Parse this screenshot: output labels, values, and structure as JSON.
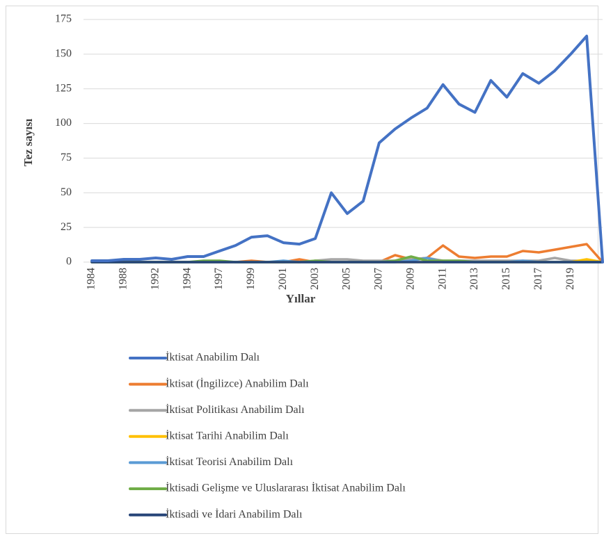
{
  "chart_data": {
    "type": "line",
    "x_label": "Yıllar",
    "y_label": "Tez sayısı",
    "categories": [
      "1984",
      null,
      "1988",
      null,
      "1992",
      null,
      "1994",
      null,
      "1997",
      null,
      "1999",
      null,
      "2001",
      null,
      "2003",
      null,
      "2005",
      null,
      "2007",
      null,
      "2009",
      null,
      "2011",
      null,
      "2013",
      null,
      "2015",
      null,
      "2017",
      null,
      "2019",
      null,
      null
    ],
    "series": [
      {
        "name": "İktisat Anabilim Dalı",
        "color": "#4472c4",
        "values": [
          1,
          1,
          2,
          2,
          3,
          2,
          4,
          4,
          8,
          12,
          18,
          19,
          14,
          13,
          17,
          50,
          35,
          44,
          86,
          96,
          104,
          111,
          128,
          114,
          108,
          131,
          119,
          136,
          129,
          138,
          150,
          163,
          0
        ]
      },
      {
        "name": "İktisat (İngilizce) Anabilim Dalı",
        "color": "#ed7d31",
        "values": [
          0,
          0,
          0,
          0,
          0,
          0,
          0,
          0,
          0,
          0,
          1,
          0,
          0,
          2,
          0,
          0,
          0,
          0,
          0,
          5,
          2,
          3,
          12,
          4,
          3,
          4,
          4,
          8,
          7,
          9,
          11,
          13,
          0
        ]
      },
      {
        "name": "İktisat Politikası Anabilim Dalı",
        "color": "#a5a5a5",
        "values": [
          0,
          0,
          0,
          0,
          0,
          0,
          0,
          0,
          0,
          0,
          0,
          0,
          0,
          0,
          1,
          2,
          2,
          1,
          1,
          1,
          2,
          3,
          1,
          1,
          1,
          1,
          1,
          1,
          1,
          3,
          1,
          1,
          0
        ]
      },
      {
        "name": "İktisat Tarihi Anabilim Dalı",
        "color": "#ffc000",
        "values": [
          0,
          0,
          0,
          0,
          0,
          0,
          0,
          0,
          0,
          0,
          0,
          0,
          0,
          0,
          0,
          0,
          0,
          0,
          0,
          0,
          0,
          0,
          0,
          0,
          0,
          0,
          0,
          0,
          0,
          0,
          0,
          2,
          0
        ]
      },
      {
        "name": "İktisat Teorisi Anabilim Dalı",
        "color": "#5b9bd5",
        "values": [
          0,
          0,
          0,
          0,
          0,
          0,
          0,
          0,
          0,
          0,
          0,
          0,
          1,
          0,
          0,
          0,
          0,
          0,
          0,
          0,
          1,
          3,
          0,
          0,
          0,
          0,
          0,
          1,
          0,
          0,
          0,
          0,
          0
        ]
      },
      {
        "name": "İktisadi Gelişme ve Uluslararası İktisat Anabilim Dalı",
        "color": "#70ad47",
        "values": [
          0,
          0,
          0,
          0,
          0,
          0,
          0,
          1,
          1,
          0,
          0,
          0,
          0,
          0,
          1,
          0,
          0,
          0,
          0,
          1,
          4,
          1,
          1,
          1,
          0,
          0,
          0,
          0,
          0,
          0,
          0,
          0,
          0
        ]
      },
      {
        "name": "İktisadi ve İdari Anabilim Dalı",
        "color": "#264478",
        "values": [
          0,
          0,
          0,
          0,
          0,
          0,
          0,
          0,
          0,
          0,
          0,
          0,
          0,
          0,
          0,
          0,
          0,
          0,
          0,
          0,
          0,
          0,
          0,
          0,
          0,
          0,
          0,
          0,
          0,
          0,
          0,
          0,
          0
        ]
      }
    ],
    "ylim": [
      0,
      175
    ],
    "yticks": [
      0,
      25,
      50,
      75,
      100,
      125,
      150,
      175
    ],
    "grid": true
  }
}
